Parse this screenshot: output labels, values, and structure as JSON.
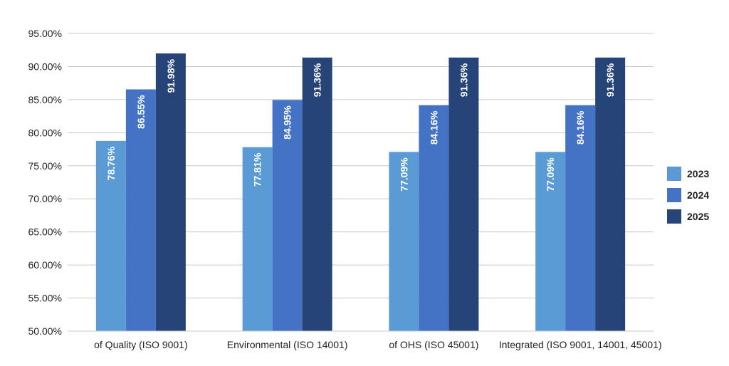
{
  "chart_data": {
    "type": "bar",
    "categories": [
      "of Quality (ISO 9001)",
      "Environmental (ISO 14001)",
      "of OHS (ISO 45001)",
      "Integrated (ISO 9001, 14001, 45001)"
    ],
    "series": [
      {
        "name": "2023",
        "color": "#5b9bd5",
        "values": [
          78.76,
          77.81,
          77.09,
          77.09
        ],
        "labels": [
          "78.76%",
          "77.81%",
          "77.09%",
          "77.09%"
        ]
      },
      {
        "name": "2024",
        "color": "#4472c4",
        "values": [
          86.55,
          84.95,
          84.16,
          84.16
        ],
        "labels": [
          "86.55%",
          "84.95%",
          "84.16%",
          "84.16%"
        ]
      },
      {
        "name": "2025",
        "color": "#264478",
        "values": [
          91.98,
          91.36,
          91.36,
          91.36
        ],
        "labels": [
          "91.98%",
          "91.36%",
          "91.36%",
          "91.36%"
        ]
      }
    ],
    "ylim": [
      50,
      95
    ],
    "yticks": [
      50,
      55,
      60,
      65,
      70,
      75,
      80,
      85,
      90,
      95
    ],
    "ytick_labels": [
      "50.00%",
      "55.00%",
      "60.00%",
      "65.00%",
      "70.00%",
      "75.00%",
      "80.00%",
      "85.00%",
      "90.00%",
      "95.00%"
    ],
    "grid": true,
    "legend_position": "right",
    "data_labels": "inside-vertical"
  }
}
